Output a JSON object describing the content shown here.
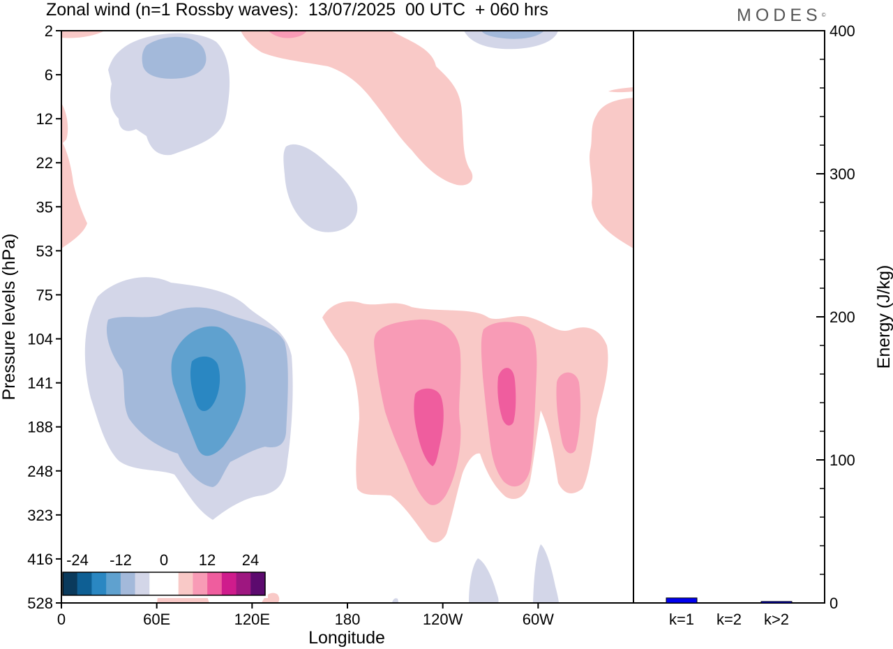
{
  "header": {
    "title": "Zonal wind (n=1 Rossby waves):  13/07/2025  00 UTC  + 060 hrs",
    "brand": "MODES"
  },
  "chart_data": [
    {
      "type": "heatmap",
      "title": "Zonal wind (n=1 Rossby waves):  13/07/2025  00 UTC  + 060 hrs",
      "xlabel": "Longitude",
      "ylabel": "Pressure levels (hPa)",
      "x_ticks": [
        "0",
        "60E",
        "120E",
        "180",
        "120W",
        "60W"
      ],
      "x_tick_degrees": [
        0,
        60,
        120,
        180,
        240,
        300
      ],
      "xlim": [
        0,
        360
      ],
      "y_ticks": [
        "2",
        "6",
        "12",
        "22",
        "35",
        "53",
        "75",
        "104",
        "141",
        "188",
        "248",
        "323",
        "416",
        "528"
      ],
      "y_scale": "pressure levels (top 2 hPa, bottom 528 hPa)",
      "colorbar": {
        "labels": [
          "-24",
          "-12",
          "0",
          "12",
          "24"
        ],
        "levels": [
          -30,
          -25,
          -20,
          -15,
          -10,
          -5,
          0,
          5,
          10,
          15,
          20,
          25,
          30
        ],
        "colors": [
          "#0a3a5c",
          "#0e5f94",
          "#2a87c2",
          "#5fa1cf",
          "#a3b9da",
          "#d3d6e8",
          "#ffffff",
          "#ffffff",
          "#f9c9c7",
          "#f89bb6",
          "#ef5d9e",
          "#cf1c8c",
          "#9e1780",
          "#5c0a6e"
        ]
      },
      "features": [
        {
          "sign": "negative",
          "center_lon": 90,
          "center_hPa": 141,
          "min_value": -22
        },
        {
          "sign": "positive",
          "center_lon": 245,
          "center_hPa": 160,
          "max_value": 17
        },
        {
          "sign": "positive",
          "center_lon": 277,
          "center_hPa": 141,
          "max_value": 17
        },
        {
          "sign": "positive",
          "center_lon": 310,
          "center_hPa": 160,
          "max_value": 12
        },
        {
          "sign": "negative",
          "center_lon": 60,
          "center_hPa": 6,
          "min_value": -10
        },
        {
          "sign": "positive",
          "center_lon": 210,
          "center_hPa": 12,
          "max_value": 7
        }
      ]
    },
    {
      "type": "bar",
      "ylabel": "Energy (J/kg)",
      "ylim": [
        0,
        400
      ],
      "y_ticks": [
        "0",
        "100",
        "200",
        "300",
        "400"
      ],
      "categories": [
        "k=1",
        "k=2",
        "k>2"
      ],
      "values": [
        3.5,
        0,
        1
      ],
      "colors": [
        "#0000ee",
        "#0000ee",
        "#0000ee"
      ]
    }
  ]
}
